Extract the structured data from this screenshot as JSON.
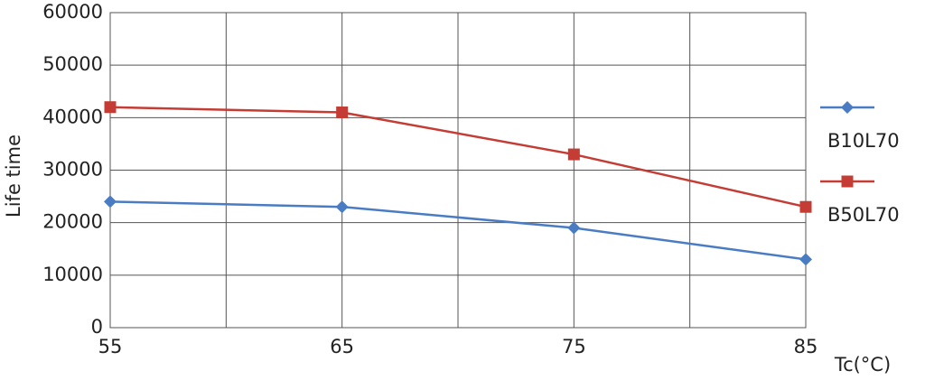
{
  "chart_data": {
    "type": "line",
    "x_label": "Tc(°C)",
    "y_label": "Life time",
    "x": [
      55,
      65,
      75,
      85
    ],
    "series": [
      {
        "name": "B10L70",
        "color": "#4a7cc4",
        "marker": "diamond",
        "values": [
          24000,
          23000,
          19000,
          13000
        ]
      },
      {
        "name": "B50L70",
        "color": "#c43c34",
        "marker": "square",
        "values": [
          42000,
          41000,
          33000,
          23000
        ]
      }
    ],
    "xlim": [
      55,
      85
    ],
    "xticks": [
      55,
      65,
      75,
      85
    ],
    "ylim": [
      0,
      60000
    ],
    "yticks": [
      0,
      10000,
      20000,
      30000,
      40000,
      50000,
      60000
    ],
    "grid": true,
    "legend": "right"
  }
}
